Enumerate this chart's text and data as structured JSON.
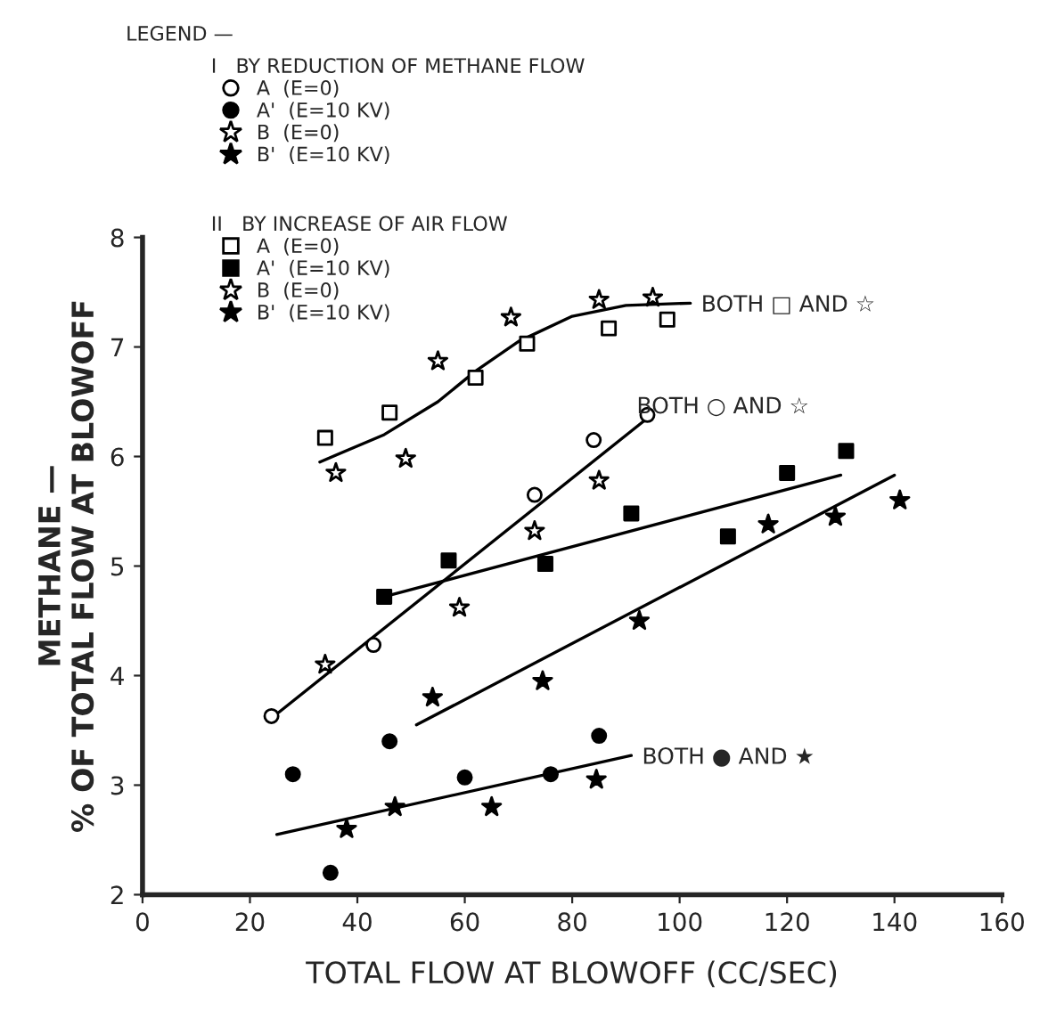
{
  "chart_data": {
    "type": "scatter",
    "xlabel": "TOTAL FLOW AT BLOWOFF (CC/SEC)",
    "ylabel": "METHANE —\n% OF TOTAL FLOW AT BLOWOFF",
    "xlim": [
      0,
      160
    ],
    "xticks": [
      0,
      20,
      40,
      60,
      80,
      100,
      120,
      140,
      160
    ],
    "ylim": [
      2,
      8
    ],
    "yticks": [
      2,
      3,
      4,
      5,
      6,
      7,
      8
    ],
    "grid": false,
    "legend": "top left",
    "annotations": [
      "LEGEND —",
      "I   BY REDUCTION OF METHANE FLOW",
      "II   BY INCREASE OF AIR FLOW",
      "BOTH □ AND ☆",
      "BOTH ○ AND ☆",
      "BOTH ● AND ★"
    ],
    "series": [
      {
        "name": "A  (E=0)",
        "color": "#ffffff",
        "marker": "circle",
        "x": [
          24,
          43,
          73,
          84,
          94
        ],
        "values": [
          3.63,
          4.28,
          5.65,
          6.15,
          6.38
        ]
      },
      {
        "name": "A'  (E=10 KV)",
        "color": "#000000",
        "marker": "circle",
        "x": [
          28,
          35,
          46,
          60,
          76,
          85
        ],
        "values": [
          3.1,
          2.2,
          3.4,
          3.07,
          3.1,
          3.45
        ]
      },
      {
        "name": "B  (E=0)",
        "color": "#ffffff",
        "marker": "star",
        "x": [
          34,
          36,
          49,
          55,
          59,
          68.6,
          73,
          85,
          85,
          95
        ],
        "values": [
          4.1,
          5.85,
          5.98,
          6.87,
          4.62,
          7.27,
          5.32,
          5.78,
          7.43,
          7.45
        ]
      },
      {
        "name": "B'  (E=10 KV)",
        "color": "#000000",
        "marker": "star",
        "x": [
          38,
          47,
          54,
          65,
          74.5,
          84.5,
          92.5,
          116.5,
          129,
          141
        ],
        "values": [
          2.6,
          2.8,
          3.8,
          2.8,
          3.95,
          3.05,
          4.5,
          5.38,
          5.45,
          5.6
        ]
      },
      {
        "name": "A  (E=0)",
        "color": "#ffffff",
        "marker": "square",
        "x": [
          34,
          46,
          62,
          71.6,
          86.8,
          97.7
        ],
        "values": [
          6.17,
          6.4,
          6.72,
          7.03,
          7.17,
          7.25
        ]
      },
      {
        "name": "A'  (E=10 KV)",
        "color": "#000000",
        "marker": "square",
        "x": [
          45,
          57,
          75,
          91,
          109,
          120,
          131
        ],
        "values": [
          4.72,
          5.05,
          5.02,
          5.48,
          5.27,
          5.85,
          6.05
        ]
      },
      {
        "type": "line",
        "color": "#000000",
        "line_style": "solid",
        "x": [
          33,
          45,
          55,
          62,
          70,
          80,
          90,
          102
        ],
        "values": [
          5.95,
          6.2,
          6.5,
          6.78,
          7.05,
          7.28,
          7.38,
          7.4
        ]
      },
      {
        "type": "line",
        "color": "#000000",
        "line_style": "solid",
        "x": [
          25,
          94
        ],
        "values": [
          3.65,
          6.35
        ]
      },
      {
        "type": "line",
        "color": "#000000",
        "line_style": "solid",
        "x": [
          45,
          130
        ],
        "values": [
          4.72,
          5.83
        ]
      },
      {
        "type": "line",
        "color": "#000000",
        "line_style": "solid",
        "x": [
          51,
          140
        ],
        "values": [
          3.55,
          5.83
        ]
      },
      {
        "type": "line",
        "color": "#000000",
        "line_style": "solid",
        "x": [
          25,
          91
        ],
        "values": [
          2.55,
          3.27
        ]
      }
    ]
  }
}
